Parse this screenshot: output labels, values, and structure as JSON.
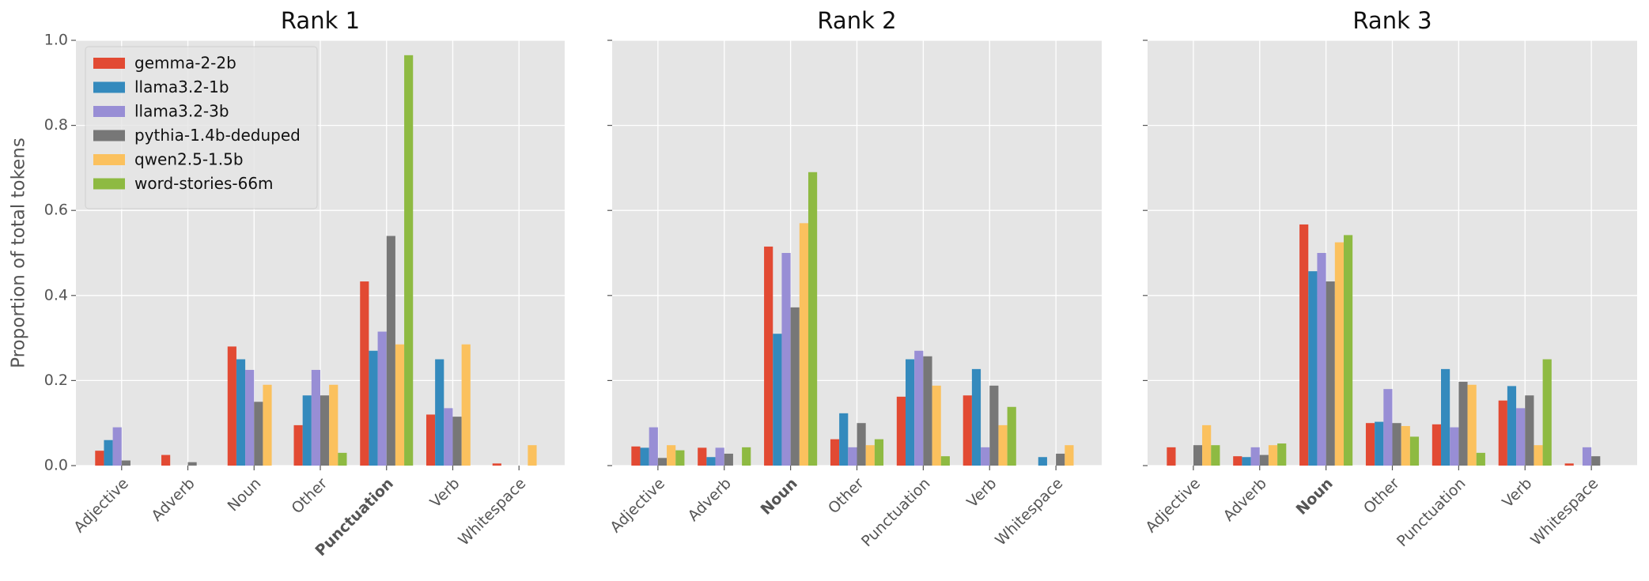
{
  "chart_data": [
    {
      "type": "bar",
      "title": "Rank 1",
      "y_label": "Proportion of total tokens",
      "legend": "upper left",
      "grid": true,
      "bold_category": "Punctuation",
      "categories": [
        "Adjective",
        "Adverb",
        "Noun",
        "Other",
        "Punctuation",
        "Verb",
        "Whitespace"
      ],
      "ylim": [
        0,
        1
      ],
      "yticks": [
        {
          "value": 0,
          "label": "0.0"
        },
        0.2,
        0.4,
        0.6,
        0.8,
        {
          "value": 1,
          "label": "1.0"
        }
      ],
      "series": [
        {
          "name": "gemma-2-2b",
          "color": "#E24A33",
          "values": [
            0.035,
            0.025,
            0.28,
            0.095,
            0.433,
            0.12,
            0.005
          ]
        },
        {
          "name": "llama3.2-1b",
          "color": "#348ABD",
          "values": [
            0.06,
            0,
            0.25,
            0.165,
            0.27,
            0.25,
            0
          ]
        },
        {
          "name": "llama3.2-3b",
          "color": "#988ED5",
          "values": [
            0.09,
            0,
            0.225,
            0.225,
            0.315,
            0.135,
            0
          ]
        },
        {
          "name": "pythia-1.4b-deduped",
          "color": "#777777",
          "values": [
            0.012,
            0.008,
            0.15,
            0.165,
            0.54,
            0.115,
            0
          ]
        },
        {
          "name": "qwen2.5-1.5b",
          "color": "#FBC15E",
          "values": [
            0,
            0,
            0.19,
            0.19,
            0.285,
            0.285,
            0.048
          ]
        },
        {
          "name": "word-stories-66m",
          "color": "#8EBA42",
          "values": [
            0,
            0,
            0,
            0.03,
            0.965,
            0,
            0
          ]
        }
      ]
    },
    {
      "type": "bar",
      "title": "Rank 2",
      "grid": true,
      "sharey": true,
      "bold_category": "Noun",
      "categories": [
        "Adjective",
        "Adverb",
        "Noun",
        "Other",
        "Punctuation",
        "Verb",
        "Whitespace"
      ],
      "ylim": [
        0,
        1
      ],
      "yticks": [
        0,
        0.2,
        0.4,
        0.6,
        0.8,
        1
      ],
      "series": [
        {
          "color": "#E24A33",
          "values": [
            0.045,
            0.042,
            0.515,
            0.062,
            0.162,
            0.165,
            0
          ]
        },
        {
          "color": "#348ABD",
          "values": [
            0.042,
            0.02,
            0.31,
            0.123,
            0.25,
            0.227,
            0.02
          ]
        },
        {
          "color": "#988ED5",
          "values": [
            0.09,
            0.042,
            0.5,
            0.043,
            0.27,
            0.043,
            0
          ]
        },
        {
          "color": "#777777",
          "values": [
            0.018,
            0.028,
            0.372,
            0.1,
            0.257,
            0.188,
            0.028
          ]
        },
        {
          "color": "#FBC15E",
          "values": [
            0.048,
            0,
            0.57,
            0.048,
            0.188,
            0.095,
            0.048
          ]
        },
        {
          "color": "#8EBA42",
          "values": [
            0.036,
            0.043,
            0.69,
            0.062,
            0.022,
            0.138,
            0
          ]
        }
      ]
    },
    {
      "type": "bar",
      "title": "Rank 3",
      "grid": true,
      "sharey": true,
      "bold_category": "Noun",
      "categories": [
        "Adjective",
        "Adverb",
        "Noun",
        "Other",
        "Punctuation",
        "Verb",
        "Whitespace"
      ],
      "ylim": [
        0,
        1
      ],
      "yticks": [
        0,
        0.2,
        0.4,
        0.6,
        0.8,
        1
      ],
      "series": [
        {
          "color": "#E24A33",
          "values": [
            0.043,
            0.022,
            0.567,
            0.1,
            0.097,
            0.153,
            0.005
          ]
        },
        {
          "color": "#348ABD",
          "values": [
            0,
            0.02,
            0.457,
            0.103,
            0.227,
            0.187,
            0
          ]
        },
        {
          "color": "#988ED5",
          "values": [
            0,
            0.043,
            0.5,
            0.18,
            0.09,
            0.135,
            0.043
          ]
        },
        {
          "color": "#777777",
          "values": [
            0.048,
            0.025,
            0.433,
            0.1,
            0.197,
            0.165,
            0.022
          ]
        },
        {
          "color": "#FBC15E",
          "values": [
            0.095,
            0.048,
            0.525,
            0.093,
            0.19,
            0.048,
            0
          ]
        },
        {
          "color": "#8EBA42",
          "values": [
            0.048,
            0.052,
            0.542,
            0.068,
            0.03,
            0.25,
            0
          ]
        }
      ]
    }
  ]
}
